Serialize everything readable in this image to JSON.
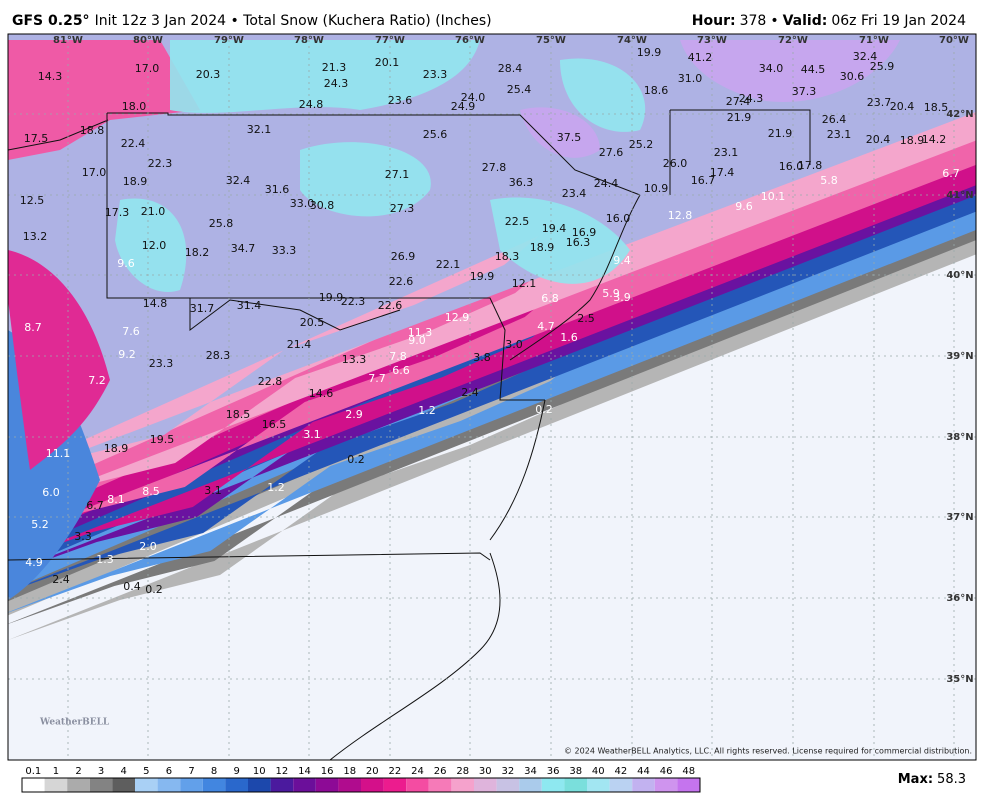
{
  "header": {
    "model": "GFS 0.25°",
    "description": "Init 12z 3 Jan 2024 • Total Snow (Kuchera Ratio) (Inches)",
    "hour_label": "Hour:",
    "hour": "378",
    "separator": "•",
    "valid_label": "Valid:",
    "valid": "06z Fri 19 Jan 2024"
  },
  "longitudes": [
    "81°W",
    "80°W",
    "79°W",
    "78°W",
    "77°W",
    "76°W",
    "75°W",
    "74°W",
    "73°W",
    "72°W",
    "71°W",
    "70°W"
  ],
  "latitudes": [
    "42°N",
    "41°N",
    "40°N",
    "39°N",
    "38°N",
    "37°N",
    "36°N",
    "35°N"
  ],
  "snow_totals": [
    "14.3",
    "17.0",
    "20.3",
    "21.3",
    "20.1",
    "23.3",
    "28.4",
    "19.9",
    "41.2",
    "34.0",
    "44.5",
    "32.4",
    "25.9",
    "30.6",
    "24.3",
    "31.0",
    "18.6",
    "37.3",
    "27.4",
    "24.3",
    "23.7",
    "20.4",
    "18.5",
    "18.0",
    "24.8",
    "23.6",
    "24.0",
    "24.9",
    "25.4",
    "21.9",
    "26.4",
    "32.1",
    "25.6",
    "37.5",
    "25.2",
    "21.9",
    "23.1",
    "20.4",
    "18.9",
    "14.2",
    "17.5",
    "18.8",
    "22.4",
    "27.6",
    "23.1",
    "22.3",
    "27.8",
    "26.0",
    "16.0",
    "17.8",
    "17.0",
    "18.9",
    "32.4",
    "27.1",
    "36.3",
    "17.4",
    "16.7",
    "24.4",
    "5.8",
    "6.7",
    "31.6",
    "10.9",
    "23.4",
    "10.1",
    "12.5",
    "33.0",
    "30.8",
    "17.3",
    "21.0",
    "27.3",
    "9.6",
    "12.8",
    "16.0",
    "25.8",
    "22.5",
    "19.4",
    "16.9",
    "13.2",
    "12.0",
    "34.7",
    "33.3",
    "16.3",
    "18.9",
    "18.2",
    "26.9",
    "18.3",
    "9.4",
    "9.6",
    "22.1",
    "19.9",
    "22.6",
    "12.1",
    "19.9",
    "22.3",
    "22.6",
    "6.8",
    "5.9",
    "3.9",
    "14.8",
    "31.7",
    "31.4",
    "12.9",
    "2.5",
    "20.5",
    "8.7",
    "7.6",
    "11.3",
    "4.7",
    "9.0",
    "1.6",
    "21.4",
    "3.0",
    "9.2",
    "28.3",
    "7.8",
    "3.8",
    "13.3",
    "23.3",
    "6.6",
    "7.2",
    "7.7",
    "22.8",
    "14.6",
    "2.4",
    "1.2",
    "0.2",
    "18.5",
    "2.9",
    "16.5",
    "3.1",
    "19.5",
    "18.9",
    "11.1",
    "0.2",
    "3.1",
    "1.2",
    "8.5",
    "6.0",
    "8.1",
    "6.7",
    "5.2",
    "3.3",
    "2.0",
    "4.9",
    "1.3",
    "2.4",
    "0.4",
    "0.2"
  ],
  "copyright": "© 2024 WeatherBELL Analytics, LLC. All rights reserved. License required for commercial distribution.",
  "logo": "WeatherBELL",
  "colorbar": {
    "labels": [
      "0.1",
      "1",
      "2",
      "3",
      "4",
      "5",
      "6",
      "7",
      "8",
      "9",
      "10",
      "12",
      "14",
      "16",
      "18",
      "20",
      "22",
      "24",
      "26",
      "28",
      "30",
      "32",
      "34",
      "36",
      "38",
      "40",
      "42",
      "44",
      "46",
      "48"
    ],
    "colors": [
      "#ffffff",
      "#d6d6d6",
      "#ababab",
      "#838383",
      "#5e5e5e",
      "#a9d0f5",
      "#86b8f0",
      "#62a0ea",
      "#4286e0",
      "#2a68cc",
      "#1c48ac",
      "#4b1a9e",
      "#6b0f9a",
      "#8d0a96",
      "#b00c8e",
      "#d4108a",
      "#ec1c8e",
      "#f44ca2",
      "#f67ab8",
      "#f5a2cc",
      "#dfb4dc",
      "#c8c2e4",
      "#aacbeb",
      "#8ee8f0",
      "#7adfdc",
      "#a2e6f2",
      "#bad2f2",
      "#c2b2f0",
      "#cf94ee",
      "#c574ee"
    ]
  },
  "max_label": "Max:",
  "max_value": "58.3"
}
